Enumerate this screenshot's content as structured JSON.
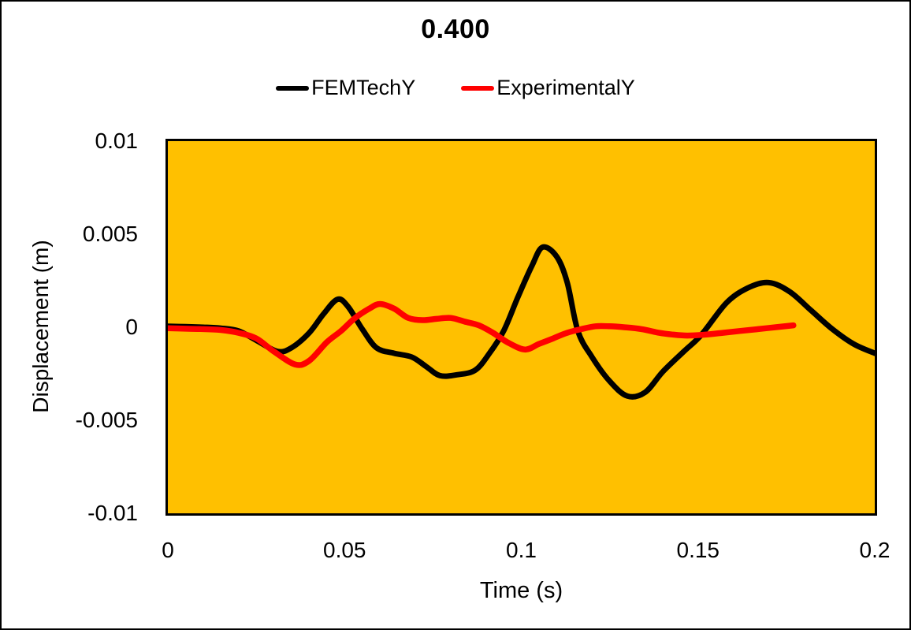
{
  "title": "0.400",
  "colors": {
    "chart_background": "#FFFFFF",
    "plot_background": "#FFC000",
    "border": "#000000",
    "text": "#000000",
    "series1": "#000000",
    "series2": "#FF0000"
  },
  "chart_data": {
    "type": "line",
    "title": "0.400",
    "xlabel": "Time (s)",
    "ylabel": "Displacement (m)",
    "xlim": [
      0,
      0.2
    ],
    "ylim": [
      -0.01,
      0.01
    ],
    "x_tick_values": [
      0,
      0.05,
      0.1,
      0.15,
      0.2
    ],
    "x_tick_labels": [
      "0",
      "0.05",
      "0.1",
      "0.15",
      "0.2"
    ],
    "y_tick_values": [
      0.01,
      0.005,
      0,
      -0.005,
      -0.01
    ],
    "y_tick_labels": [
      "0.01",
      "0.005",
      "0",
      "-0.005",
      "-0.01"
    ],
    "grid": false,
    "legend_position": "top",
    "plot_area_bg": "#FFC000",
    "series": [
      {
        "name": "FEMTechY",
        "color": "#000000",
        "stroke_width": 7,
        "x": [
          0,
          0.005,
          0.01,
          0.015,
          0.02,
          0.025,
          0.031,
          0.035,
          0.04,
          0.044,
          0.048,
          0.051,
          0.055,
          0.059,
          0.064,
          0.069,
          0.073,
          0.077,
          0.082,
          0.087,
          0.091,
          0.095,
          0.099,
          0.103,
          0.106,
          0.11,
          0.113,
          0.116,
          0.12,
          0.125,
          0.13,
          0.135,
          0.14,
          0.146,
          0.151,
          0.158,
          0.164,
          0.17,
          0.176,
          0.182,
          0.188,
          0.194,
          0.2
        ],
        "y": [
          5e-05,
          3e-05,
          0.0,
          -5e-05,
          -0.0002,
          -0.0007,
          -0.0013,
          -0.0011,
          -0.0003,
          0.0007,
          0.0015,
          0.0011,
          -0.0001,
          -0.0011,
          -0.0014,
          -0.0016,
          -0.0021,
          -0.0026,
          -0.00255,
          -0.0023,
          -0.0014,
          -0.0002,
          0.0016,
          0.0033,
          0.0043,
          0.0038,
          0.0024,
          -0.0002,
          -0.0016,
          -0.0029,
          -0.0037,
          -0.0035,
          -0.0024,
          -0.0013,
          -0.0004,
          0.0013,
          0.0021,
          0.0024,
          0.0019,
          0.0009,
          -0.0001,
          -0.0009,
          -0.0014
        ]
      },
      {
        "name": "ExperimentalY",
        "color": "#FF0000",
        "stroke_width": 7.5,
        "x": [
          0,
          0.005,
          0.01,
          0.015,
          0.02,
          0.025,
          0.03,
          0.036,
          0.04,
          0.045,
          0.049,
          0.053,
          0.057,
          0.06,
          0.064,
          0.068,
          0.072,
          0.076,
          0.08,
          0.084,
          0.088,
          0.092,
          0.096,
          0.101,
          0.105,
          0.109,
          0.113,
          0.117,
          0.121,
          0.125,
          0.129,
          0.134,
          0.139,
          0.143,
          0.147,
          0.152,
          0.157,
          0.162,
          0.167,
          0.172,
          0.177
        ],
        "y": [
          -5e-05,
          -8e-05,
          -0.0001,
          -0.00015,
          -0.0003,
          -0.0006,
          -0.0013,
          -0.002,
          -0.0018,
          -0.0008,
          -0.0002,
          0.0005,
          0.001,
          0.00125,
          0.001,
          0.0005,
          0.00038,
          0.00045,
          0.0005,
          0.0003,
          0.0001,
          -0.0003,
          -0.0008,
          -0.0012,
          -0.0009,
          -0.0006,
          -0.0003,
          -0.0001,
          5e-05,
          5e-05,
          0.0,
          -0.0001,
          -0.0003,
          -0.0004,
          -0.00045,
          -0.0004,
          -0.0003,
          -0.0002,
          -0.0001,
          0.0,
          0.0001
        ]
      }
    ]
  }
}
